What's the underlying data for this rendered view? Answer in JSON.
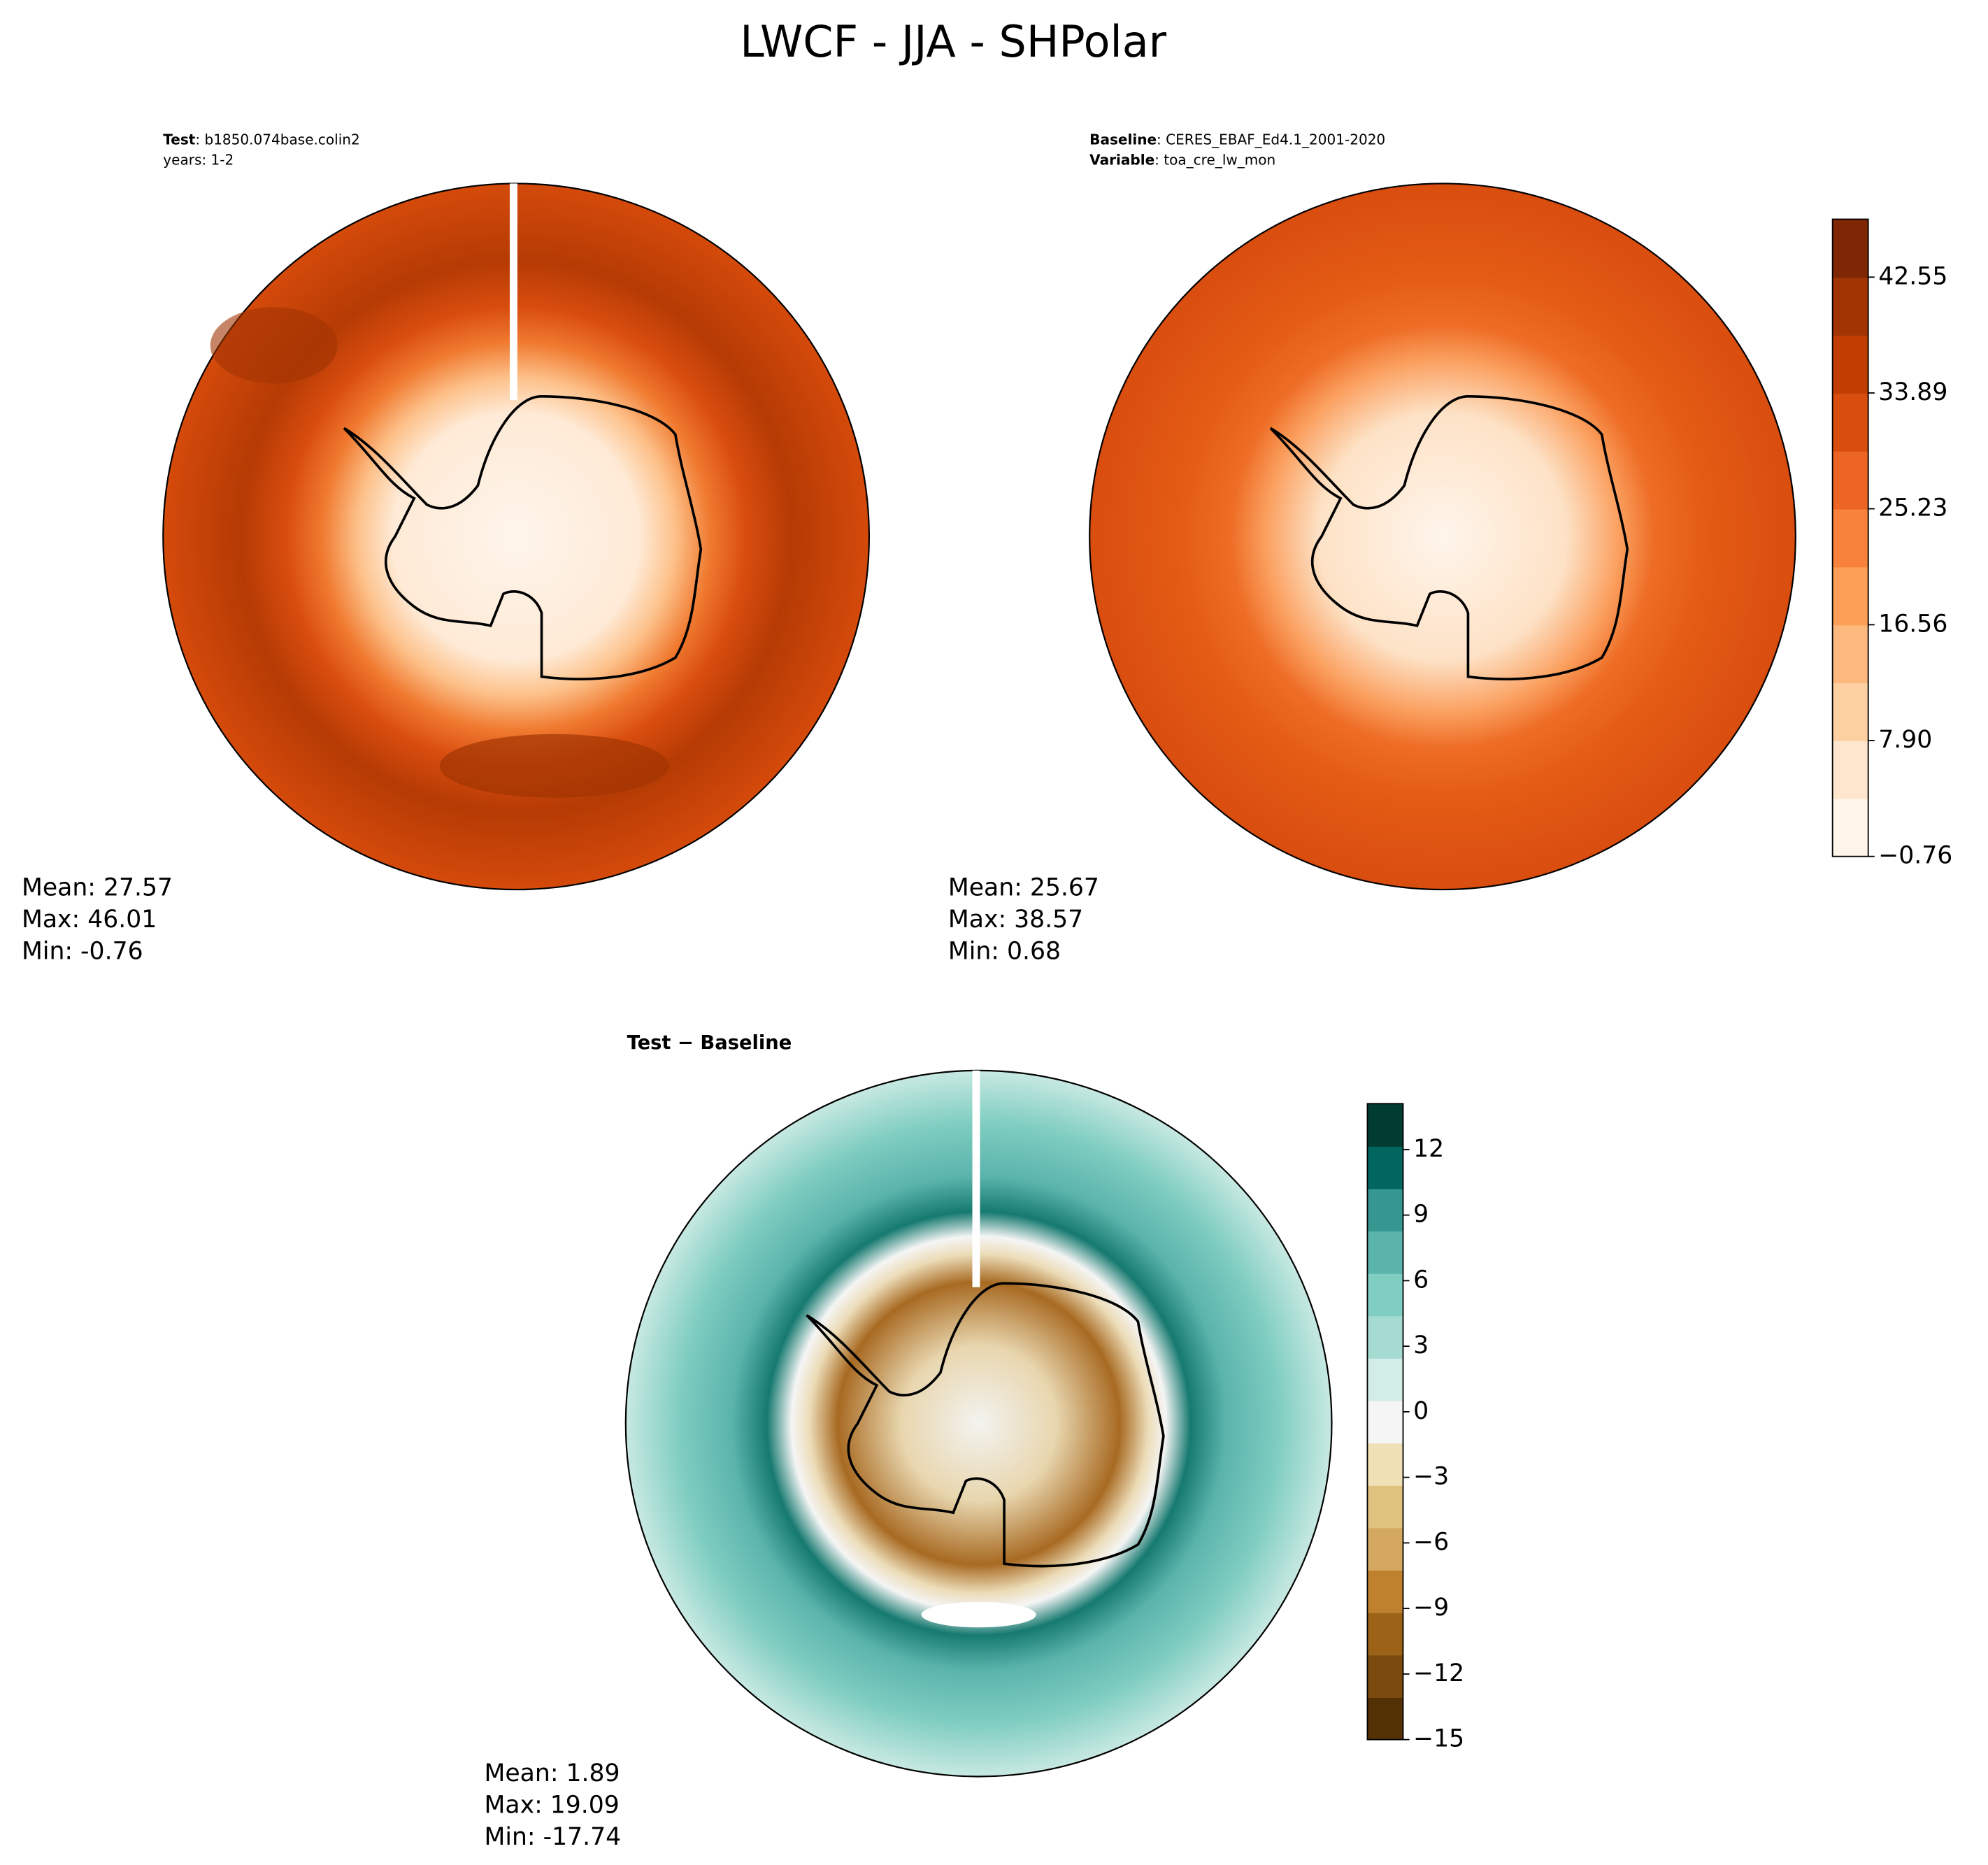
{
  "title": "LWCF - JJA - SHPolar",
  "panels": [
    {
      "lines": [
        {
          "key": "Test",
          "value": ": b1850.074base.colin2"
        },
        {
          "key": null,
          "value": "years: 1-2"
        }
      ],
      "stats": [
        {
          "label": "Mean:",
          "value": 27.57
        },
        {
          "label": "Max:",
          "value": 46.01
        },
        {
          "label": "Min:",
          "value": -0.76
        }
      ]
    },
    {
      "lines": [
        {
          "key": "Baseline",
          "value": ": CERES_EBAF_Ed4.1_2001-2020"
        },
        {
          "key": "Variable",
          "value": ": toa_cre_lw_mon"
        }
      ],
      "stats": [
        {
          "label": "Mean:",
          "value": 25.67
        },
        {
          "label": "Max:",
          "value": 38.57
        },
        {
          "label": "Min:",
          "value": 0.68
        }
      ]
    },
    {
      "title": "Test − Baseline",
      "stats": [
        {
          "label": "Mean:",
          "value": 1.89
        },
        {
          "label": "Max:",
          "value": 19.09
        },
        {
          "label": "Min:",
          "value": -17.74
        }
      ]
    }
  ],
  "colorbars": [
    {
      "ylim": [
        -0.76,
        46.88
      ],
      "yticks": [
        {
          "value": -0.76,
          "label": "−0.76"
        },
        {
          "value": 7.9,
          "label": "7.90"
        },
        16.56,
        25.23,
        33.89,
        42.55
      ],
      "colors": [
        "#fff5eb",
        "#fee6ce",
        "#fdd0a2",
        "#fdb97d",
        "#fd9f56",
        "#f8823b",
        "#ec6524",
        "#d94d0f",
        "#c13e03",
        "#a13403",
        "#7f2704"
      ]
    },
    {
      "ylim": [
        -15,
        14.1
      ],
      "yticks": [
        {
          "value": -15,
          "label": "−15"
        },
        {
          "value": -12,
          "label": "−12"
        },
        {
          "value": -9,
          "label": "−9"
        },
        {
          "value": -6,
          "label": "−6"
        },
        {
          "value": -3,
          "label": "−3"
        },
        0,
        3,
        6,
        9,
        12
      ],
      "colors": [
        "#543005",
        "#7a4a0e",
        "#9c6318",
        "#bf812d",
        "#d4a860",
        "#dfc27d",
        "#f0e0b6",
        "#f5f5f5",
        "#d2ece8",
        "#a6dbd1",
        "#80cdc1",
        "#5ab4ac",
        "#35978f",
        "#01665e",
        "#003c30"
      ]
    }
  ]
}
